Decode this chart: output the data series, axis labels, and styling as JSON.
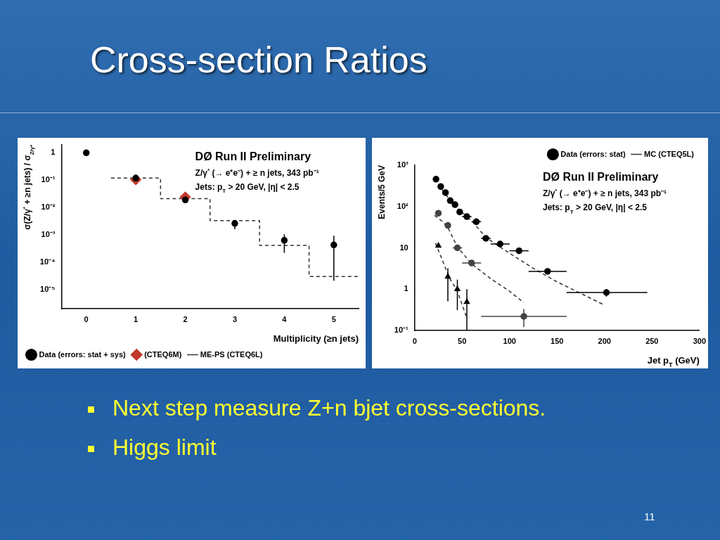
{
  "chart_data": [
    {
      "type": "scatter",
      "title": "Cross-section Ratios",
      "subtitle": "DØ Run II Preliminary",
      "xlabel": "Multiplicity (≥n jets)",
      "ylabel": "σ(Z/γ$^{*}$ + ≥n jets) / σ$_{Z/γ*}$",
      "log": "y",
      "legend": "bottom left",
      "xlim": [
        -0.5,
        5.5
      ],
      "xticks": [
        0,
        1,
        2,
        3,
        4,
        5
      ],
      "ylim": [
        2e-06,
        2
      ],
      "yticks": [
        {
          "value": 1e-05,
          "label": "10⁻⁵"
        },
        {
          "value": 0.0001,
          "label": "10⁻⁴"
        },
        {
          "value": 0.001,
          "label": "10⁻³"
        },
        {
          "value": 0.01,
          "label": "10⁻²"
        },
        {
          "value": 0.1,
          "label": "10⁻¹"
        },
        {
          "value": 1,
          "label": "1"
        }
      ],
      "series": [
        {
          "name": "Data (errors: stat + sys)",
          "type": "scatter",
          "marker": "circle",
          "color": "#000000",
          "x": [
            0,
            1,
            2,
            3,
            4,
            5
          ],
          "values": [
            1,
            0.119,
            0.019,
            0.0026,
            0.00063,
            0.00043
          ],
          "errors": [
            null,
            null,
            null,
            [
              0.0016,
              0.0035
            ],
            [
              0.00022,
              0.00105
            ],
            [
              2.1e-05,
              0.00093
            ]
          ]
        },
        {
          "name": "(CTEQ6M)",
          "type": "scatter",
          "marker": "diamond",
          "color": "#c0392b",
          "x": [
            1,
            2
          ],
          "values": [
            0.105,
            0.024
          ]
        },
        {
          "name": "ME-PS (CTEQ6L)",
          "type": "step",
          "marker": "none",
          "line_style": "dashed",
          "color": "#333333",
          "x": [
            0.5,
            1.5,
            2.5,
            3.5,
            4.5,
            5.5
          ],
          "values": [
            0.12,
            0.021,
            0.0033,
            0.00041,
            3e-05,
            3e-05
          ]
        }
      ],
      "annotations": [
        "Z/γ$^{*}$ (→ e⁺e⁻) + ≥ n jets, 343 pb⁻¹",
        "Jets: p$_{T}$ > 20 GeV, |η| < 2.5",
        "Next step measure Z+n bjet cross-sections.",
        "Higgs limit",
        "11"
      ]
    },
    {
      "type": "scatter",
      "subtitle": "DØ Run II Preliminary",
      "xlabel": "Jet p$_{T}$ (GeV)",
      "ylabel": "Events/5 GeV",
      "log": "y",
      "legend": "top right",
      "xlim": [
        0,
        300
      ],
      "xticks": [
        0,
        50,
        100,
        150,
        200,
        250,
        300
      ],
      "ylim": [
        0.1,
        1000
      ],
      "yticks": [
        {
          "value": 0.1,
          "label": "10⁻¹"
        },
        1,
        10,
        {
          "value": 100,
          "label": "10²"
        },
        {
          "value": 1000,
          "label": "10³"
        }
      ],
      "series": [
        {
          "name": "Data (errors: stat)",
          "type": "scatter",
          "marker": "circle",
          "color": "#000000",
          "x": [
            22.5,
            27.5,
            32.5,
            37.5,
            42.5,
            47.5,
            55,
            65,
            75,
            90,
            110,
            140,
            202
          ],
          "values": [
            460,
            305,
            217,
            139,
            111,
            74,
            57,
            43,
            17,
            12.4,
            8.5,
            2.7,
            0.83
          ],
          "errors": [
            null,
            null,
            null,
            null,
            null,
            null,
            null,
            null,
            null,
            null,
            null,
            null,
            [
              0.66,
              1.0
            ]
          ],
          "xerrors": [
            null,
            null,
            null,
            null,
            null,
            null,
            5,
            5,
            5,
            10,
            10,
            20,
            [
              160,
              245
            ]
          ]
        },
        {
          "type": "scatter",
          "marker": "circle",
          "color": "#444444",
          "x": [
            25,
            35,
            45,
            60,
            115
          ],
          "values": [
            69,
            35,
            10,
            4.3,
            0.22
          ],
          "errors": [
            null,
            null,
            null,
            null,
            [
              0.12,
              0.33
            ]
          ],
          "xerrors": [
            null,
            null,
            5,
            10,
            [
              70,
              160
            ]
          ]
        },
        {
          "type": "scatter",
          "marker": "triangle",
          "color": "#000000",
          "x": [
            25,
            35,
            45,
            55
          ],
          "values": [
            11.3,
            2.0,
            1.0,
            0.49
          ],
          "errors": [
            null,
            [
              0.51,
              3.2
            ],
            [
              0.31,
              1.7
            ],
            [
              0.1,
              1.0
            ]
          ]
        },
        {
          "name": "MC (CTEQ5L)",
          "type": "line",
          "marker": "none",
          "line_style": "dashed",
          "color": "#333333",
          "x": [
            21,
            30,
            40,
            50,
            60,
            75,
            90,
            100,
            125,
            150,
            175,
            200
          ],
          "values": [
            460,
            240,
            115,
            72,
            45,
            18,
            10.5,
            7.4,
            3.2,
            1.5,
            0.79,
            0.41
          ]
        },
        {
          "type": "line",
          "marker": "none",
          "line_style": "dashed",
          "color": "#333333",
          "x": [
            21,
            30,
            35,
            45,
            60,
            80,
            100,
            115
          ],
          "values": [
            61,
            42,
            31,
            10.5,
            4.1,
            1.8,
            0.89,
            0.47
          ]
        },
        {
          "type": "line",
          "marker": "none",
          "line_style": "dashed",
          "color": "#333333",
          "x": [
            22,
            37,
            45,
            55
          ],
          "values": [
            13,
            1.8,
            0.89,
            0.2
          ]
        }
      ],
      "annotations": [
        "Z/γ$^{*}$ (→ e⁺e⁻) + ≥ n jets, 343 pb⁻¹",
        "Jets: p$_{T}$ > 20 GeV, |η| < 2.5"
      ]
    }
  ]
}
